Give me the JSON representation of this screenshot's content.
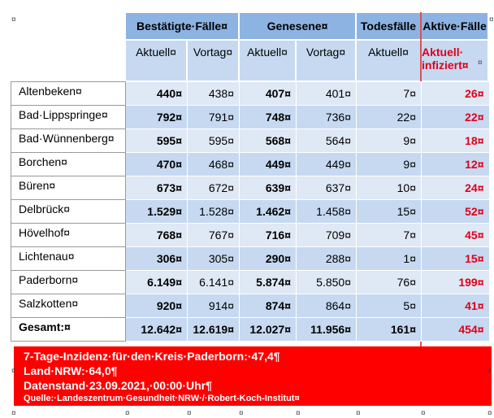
{
  "header": {
    "groups": [
      "Bestätigte·Fälle¤",
      "Genesene¤",
      "Todesfälle",
      "Aktive·Fälle"
    ],
    "sub": [
      "Aktuell¤",
      "Vortag¤",
      "Aktuell¤",
      "Vortag¤",
      "Aktuell¤"
    ],
    "active_sub_line1": "Aktuell·",
    "active_sub_line2": "infiziert¤"
  },
  "rows": [
    {
      "name": "Altenbeken¤",
      "conf": "440¤",
      "conf_prev": "438¤",
      "rec": "407¤",
      "rec_prev": "401¤",
      "deaths": "7¤",
      "active": "26¤"
    },
    {
      "name": "Bad·Lippspringe¤",
      "conf": "792¤",
      "conf_prev": "791¤",
      "rec": "748¤",
      "rec_prev": "736¤",
      "deaths": "22¤",
      "active": "22¤"
    },
    {
      "name": "Bad·Wünnenberg¤",
      "conf": "595¤",
      "conf_prev": "595¤",
      "rec": "568¤",
      "rec_prev": "564¤",
      "deaths": "9¤",
      "active": "18¤"
    },
    {
      "name": "Borchen¤",
      "conf": "470¤",
      "conf_prev": "468¤",
      "rec": "449¤",
      "rec_prev": "449¤",
      "deaths": "9¤",
      "active": "12¤"
    },
    {
      "name": "Büren¤",
      "conf": "673¤",
      "conf_prev": "672¤",
      "rec": "639¤",
      "rec_prev": "637¤",
      "deaths": "10¤",
      "active": "24¤"
    },
    {
      "name": "Delbrück¤",
      "conf": "1.529¤",
      "conf_prev": "1.528¤",
      "rec": "1.462¤",
      "rec_prev": "1.458¤",
      "deaths": "15¤",
      "active": "52¤"
    },
    {
      "name": "Hövelhof¤",
      "conf": "768¤",
      "conf_prev": "767¤",
      "rec": "716¤",
      "rec_prev": "709¤",
      "deaths": "7¤",
      "active": "45¤"
    },
    {
      "name": "Lichtenau¤",
      "conf": "306¤",
      "conf_prev": "305¤",
      "rec": "290¤",
      "rec_prev": "288¤",
      "deaths": "1¤",
      "active": "15¤"
    },
    {
      "name": "Paderborn¤",
      "conf": "6.149¤",
      "conf_prev": "6.141¤",
      "rec": "5.874¤",
      "rec_prev": "5.850¤",
      "deaths": "76¤",
      "active": "199¤"
    },
    {
      "name": "Salzkotten¤",
      "conf": "920¤",
      "conf_prev": "914¤",
      "rec": "874¤",
      "rec_prev": "864¤",
      "deaths": "5¤",
      "active": "41¤"
    }
  ],
  "total": {
    "name": "Gesamt:¤",
    "conf": "12.642¤",
    "conf_prev": "12.619¤",
    "rec": "12.027¤",
    "rec_prev": "11.956¤",
    "deaths": "161¤",
    "active": "454¤"
  },
  "footer": {
    "line1": "7-Tage-Inzidenz·für·den·Kreis·Paderborn:·47,4¶",
    "line2": "Land·NRW:·64,0¶",
    "line3": "Datenstand·23.09.2021,·00:00·Uhr¶",
    "source": "Quelle:·Landeszentrum·Gesundheit·NRW·/·Robert-Koch-Institut¤"
  },
  "marks": {
    "cell": "¤",
    "para": "¶"
  },
  "colors": {
    "header_dark": "#8db3e2",
    "header_light": "#c6d9f1",
    "row_light": "#dfe8f5",
    "accent_red": "#e0001a",
    "box_red": "#ff0000"
  }
}
